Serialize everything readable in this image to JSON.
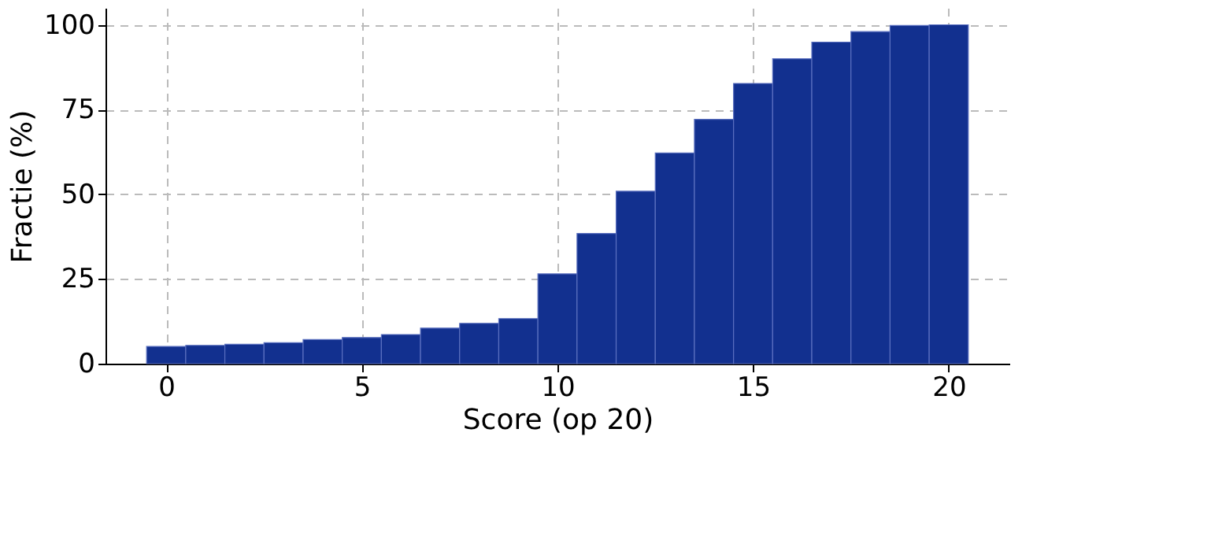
{
  "chart_data": {
    "type": "histogram",
    "xlabel": "Score (op 20)",
    "ylabel": "Fractie (%)",
    "bins": [
      -0.5,
      0.5,
      1.5,
      2.5,
      3.5,
      4.5,
      5.5,
      6.5,
      7.5,
      8.5,
      9.5,
      10.5,
      11.5,
      12.5,
      13.5,
      14.5,
      15.5,
      16.5,
      17.5,
      18.5,
      19.5,
      20.5
    ],
    "values": [
      5.1,
      5.4,
      5.7,
      6.2,
      7.1,
      7.7,
      8.6,
      10.5,
      11.9,
      13.3,
      26.5,
      38.4,
      50.9,
      62.2,
      72.1,
      82.7,
      90.0,
      94.9,
      98.0,
      99.8,
      100
    ],
    "color": "#12308f",
    "xlim": [
      -1.55,
      21.55
    ],
    "ylim": [
      0,
      105
    ],
    "xticks": [
      0,
      5,
      10,
      15,
      20
    ],
    "yticks": [
      0,
      25,
      50,
      75,
      100
    ],
    "grid": true
  }
}
